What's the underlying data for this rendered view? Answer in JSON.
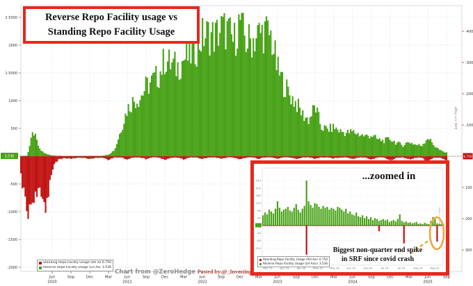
{
  "title": {
    "line1": "Reverse Repo Facility usage vs",
    "line2": "Standing Repo Facility Usage"
  },
  "watermark": {
    "chart_credit": "Chart from @ZeroHedge",
    "posted_by": "Posted by @_Investing"
  },
  "colors": {
    "green": "#47A216",
    "red": "#C01212",
    "frame_red": "#E8271D",
    "orange": "#E9A93D",
    "grid": "#d6d6d6"
  },
  "legend": {
    "items": [
      {
        "label": "Standing Repo Facility Usage (RH Axis, inverted) (R1)",
        "value": "6.750",
        "color": "#C01212"
      },
      {
        "label": "Reverse Repo Facility Usage (LH Axis) (L1)",
        "value": "3.536",
        "color": "#47A216"
      }
    ]
  },
  "main_axes": {
    "left_ticks": [
      2500,
      2000,
      1500,
      1000,
      500,
      -500,
      -1000,
      -1500,
      -2000
    ],
    "right_ticks": [
      -400,
      -300,
      -200,
      -100,
      100,
      200,
      300
    ],
    "right_axis_label": "Low <= High",
    "current_values": {
      "left": {
        "value": "3.536",
        "color": "#47A216"
      },
      "right": {
        "value": "6.750",
        "color": "#C01212"
      }
    },
    "x_ticks": [
      {
        "m": 3,
        "label": "Jun",
        "year": "2020"
      },
      {
        "m": 6,
        "label": "Sep"
      },
      {
        "m": 9,
        "label": "Dec"
      },
      {
        "m": 12,
        "label": "Mar"
      },
      {
        "m": 15,
        "label": "Jun",
        "year": "2021"
      },
      {
        "m": 18,
        "label": "Sep"
      },
      {
        "m": 21,
        "label": "Dec"
      },
      {
        "m": 24,
        "label": "Mar"
      },
      {
        "m": 27,
        "label": "Jun",
        "year": "2022"
      },
      {
        "m": 30,
        "label": "Sep"
      },
      {
        "m": 33,
        "label": "Dec"
      },
      {
        "m": 36,
        "label": "Mar"
      },
      {
        "m": 39,
        "label": "Jun",
        "year": "2023"
      },
      {
        "m": 42,
        "label": "Sep"
      },
      {
        "m": 45,
        "label": "Dec"
      },
      {
        "m": 48,
        "label": "Mar"
      },
      {
        "m": 51,
        "label": "Jun",
        "year": "2024"
      },
      {
        "m": 54,
        "label": "Sep"
      },
      {
        "m": 57,
        "label": "Dec"
      },
      {
        "m": 60,
        "label": "Mar"
      },
      {
        "m": 63,
        "label": "Jun",
        "year": "2025"
      },
      {
        "m": 66,
        "label": "Sep"
      }
    ]
  },
  "inset": {
    "title": "...zoomed in",
    "annotation_lines": [
      "Biggest non-quarter end spike",
      "in SRF since covid crash"
    ],
    "left_ticks": [
      240,
      200,
      160,
      120,
      80,
      40,
      -40,
      -80,
      -120
    ],
    "right_axis_label": "Low <= High",
    "x_ticks": [
      "Mar 31",
      "Apr 15",
      "Apr 30",
      "May 15",
      "May 31",
      "Jun 15",
      "Jun 30",
      "Jul 15",
      "Jul 31",
      "Aug 15",
      "Aug 31"
    ]
  },
  "chart_data": [
    {
      "name": "main_chart",
      "type": "bar",
      "title": "Reverse Repo Facility usage vs Standing Repo Facility Usage",
      "x_unit": "month",
      "start_month": "2020-01",
      "end_month": "2025-09",
      "ylim_left": [
        -2000,
        2800
      ],
      "ylim_right_inverted": [
        -400,
        300
      ],
      "grid": true,
      "series": [
        {
          "name": "Reverse Repo Facility Usage",
          "axis": "left",
          "color": "#47A216",
          "monthly_values_billions": [
            4,
            10,
            450,
            120,
            40,
            15,
            8,
            5,
            5,
            5,
            5,
            8,
            6,
            8,
            30,
            120,
            480,
            850,
            1000,
            1050,
            1250,
            1350,
            1450,
            1750,
            1650,
            1600,
            1750,
            1800,
            1950,
            2150,
            2200,
            2150,
            2300,
            2250,
            2050,
            2450,
            2050,
            2100,
            2200,
            2250,
            2150,
            1550,
            1300,
            1100,
            950,
            750,
            650,
            900,
            520,
            480,
            520,
            450,
            420,
            440,
            400,
            360,
            380,
            300,
            280,
            310,
            240,
            200,
            260,
            210,
            190,
            340,
            200,
            100,
            60
          ]
        },
        {
          "name": "Standing Repo Facility Usage",
          "axis": "right_inverted",
          "color": "#C01212",
          "monthly_values_billions": [
            60,
            185,
            130,
            120,
            160,
            40,
            10,
            6,
            8,
            5,
            5,
            8,
            6,
            4,
            12,
            4,
            4,
            10,
            4,
            4,
            9,
            4,
            4,
            12,
            5,
            4,
            10,
            4,
            4,
            9,
            4,
            4,
            8,
            4,
            4,
            10,
            4,
            4,
            8,
            4,
            4,
            8,
            4,
            4,
            9,
            4,
            4,
            8,
            4,
            4,
            7,
            4,
            4,
            8,
            4,
            4,
            10,
            4,
            4,
            14,
            5,
            4,
            10,
            5,
            4,
            18,
            5,
            4,
            16
          ]
        }
      ]
    },
    {
      "name": "inset_zoomed",
      "type": "bar",
      "title": "...zoomed in",
      "grid": true,
      "series": [
        {
          "name": "Reverse Repo Facility Usage",
          "axis": "left",
          "color": "#47A216",
          "values": [
            55,
            70,
            60,
            85,
            75,
            65,
            90,
            130,
            95,
            75,
            85,
            90,
            100,
            80,
            75,
            95,
            115,
            85,
            70,
            90,
            105,
            240,
            130,
            110,
            95,
            120,
            115,
            100,
            90,
            105,
            95,
            100,
            85,
            95,
            90,
            80,
            100,
            95,
            85,
            75,
            90,
            65,
            75,
            60,
            55,
            70,
            50,
            45,
            55,
            40,
            50,
            35,
            45,
            30,
            40,
            35,
            25,
            30,
            35,
            28,
            32,
            20,
            25,
            30,
            22,
            35,
            60,
            25,
            18,
            22,
            15,
            18,
            12,
            15,
            20,
            10,
            12,
            8,
            15,
            10,
            8,
            25,
            45,
            35,
            12,
            10,
            8,
            10
          ]
        },
        {
          "name": "Standing Repo Facility Usage",
          "axis": "right_inverted",
          "color": "#C01212",
          "values": [
            0,
            0,
            0,
            0,
            0,
            0,
            0,
            0,
            0,
            0,
            0,
            0,
            0,
            0,
            0,
            0,
            0,
            0,
            0,
            0,
            0,
            155,
            0,
            0,
            0,
            0,
            0,
            0,
            0,
            0,
            0,
            0,
            0,
            0,
            0,
            0,
            0,
            0,
            0,
            0,
            0,
            0,
            0,
            0,
            0,
            0,
            0,
            0,
            0,
            0,
            0,
            0,
            0,
            0,
            0,
            0,
            30,
            0,
            0,
            0,
            0,
            0,
            0,
            0,
            0,
            0,
            0,
            0,
            95,
            0,
            0,
            0,
            0,
            0,
            0,
            0,
            0,
            0,
            0,
            0,
            0,
            0,
            0,
            0,
            85,
            0,
            0,
            0
          ]
        }
      ]
    }
  ]
}
